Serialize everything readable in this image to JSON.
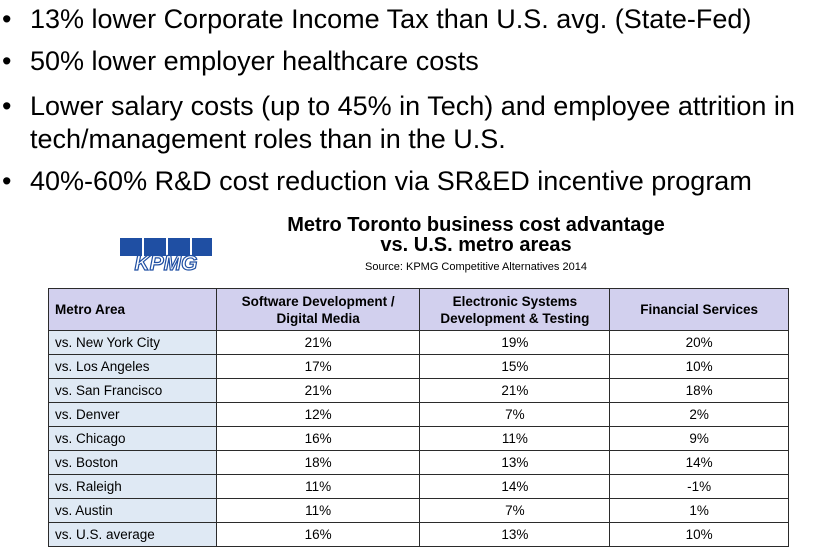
{
  "bullets": [
    "13% lower Corporate Income Tax than U.S. avg. (State-Fed)",
    "50% lower employer healthcare costs",
    "Lower salary costs (up to 45% in Tech) and employee attrition in tech/management roles than in the U.S.",
    "40%-60% R&D cost reduction via SR&ED incentive program"
  ],
  "bullet_glyph": "•",
  "chart": {
    "title_line1": "Metro Toronto business cost advantage",
    "title_line2": "vs. U.S. metro areas",
    "source": "Source: KPMG Competitive Alternatives 2014"
  },
  "logo": {
    "text": "KPMG",
    "color": "#1f4fa3"
  },
  "table": {
    "headers": [
      "Metro Area",
      "Software Development / Digital Media",
      "Electronic Systems Development & Testing",
      "Financial Services"
    ],
    "rows": [
      [
        "vs. New York City",
        "21%",
        "19%",
        "20%"
      ],
      [
        "vs. Los Angeles",
        "17%",
        "15%",
        "10%"
      ],
      [
        "vs. San Francisco",
        "21%",
        "21%",
        "18%"
      ],
      [
        "vs. Denver",
        "12%",
        "7%",
        "2%"
      ],
      [
        "vs. Chicago",
        "16%",
        "11%",
        "9%"
      ],
      [
        "vs. Boston",
        "18%",
        "13%",
        "14%"
      ],
      [
        "vs. Raleigh",
        "11%",
        "14%",
        "-1%"
      ],
      [
        "vs. Austin",
        "11%",
        "7%",
        "1%"
      ],
      [
        "vs. U.S. average",
        "16%",
        "13%",
        "10%"
      ]
    ],
    "header_bg": "#d2d0ee",
    "first_col_bg": "#dfe9f4"
  }
}
